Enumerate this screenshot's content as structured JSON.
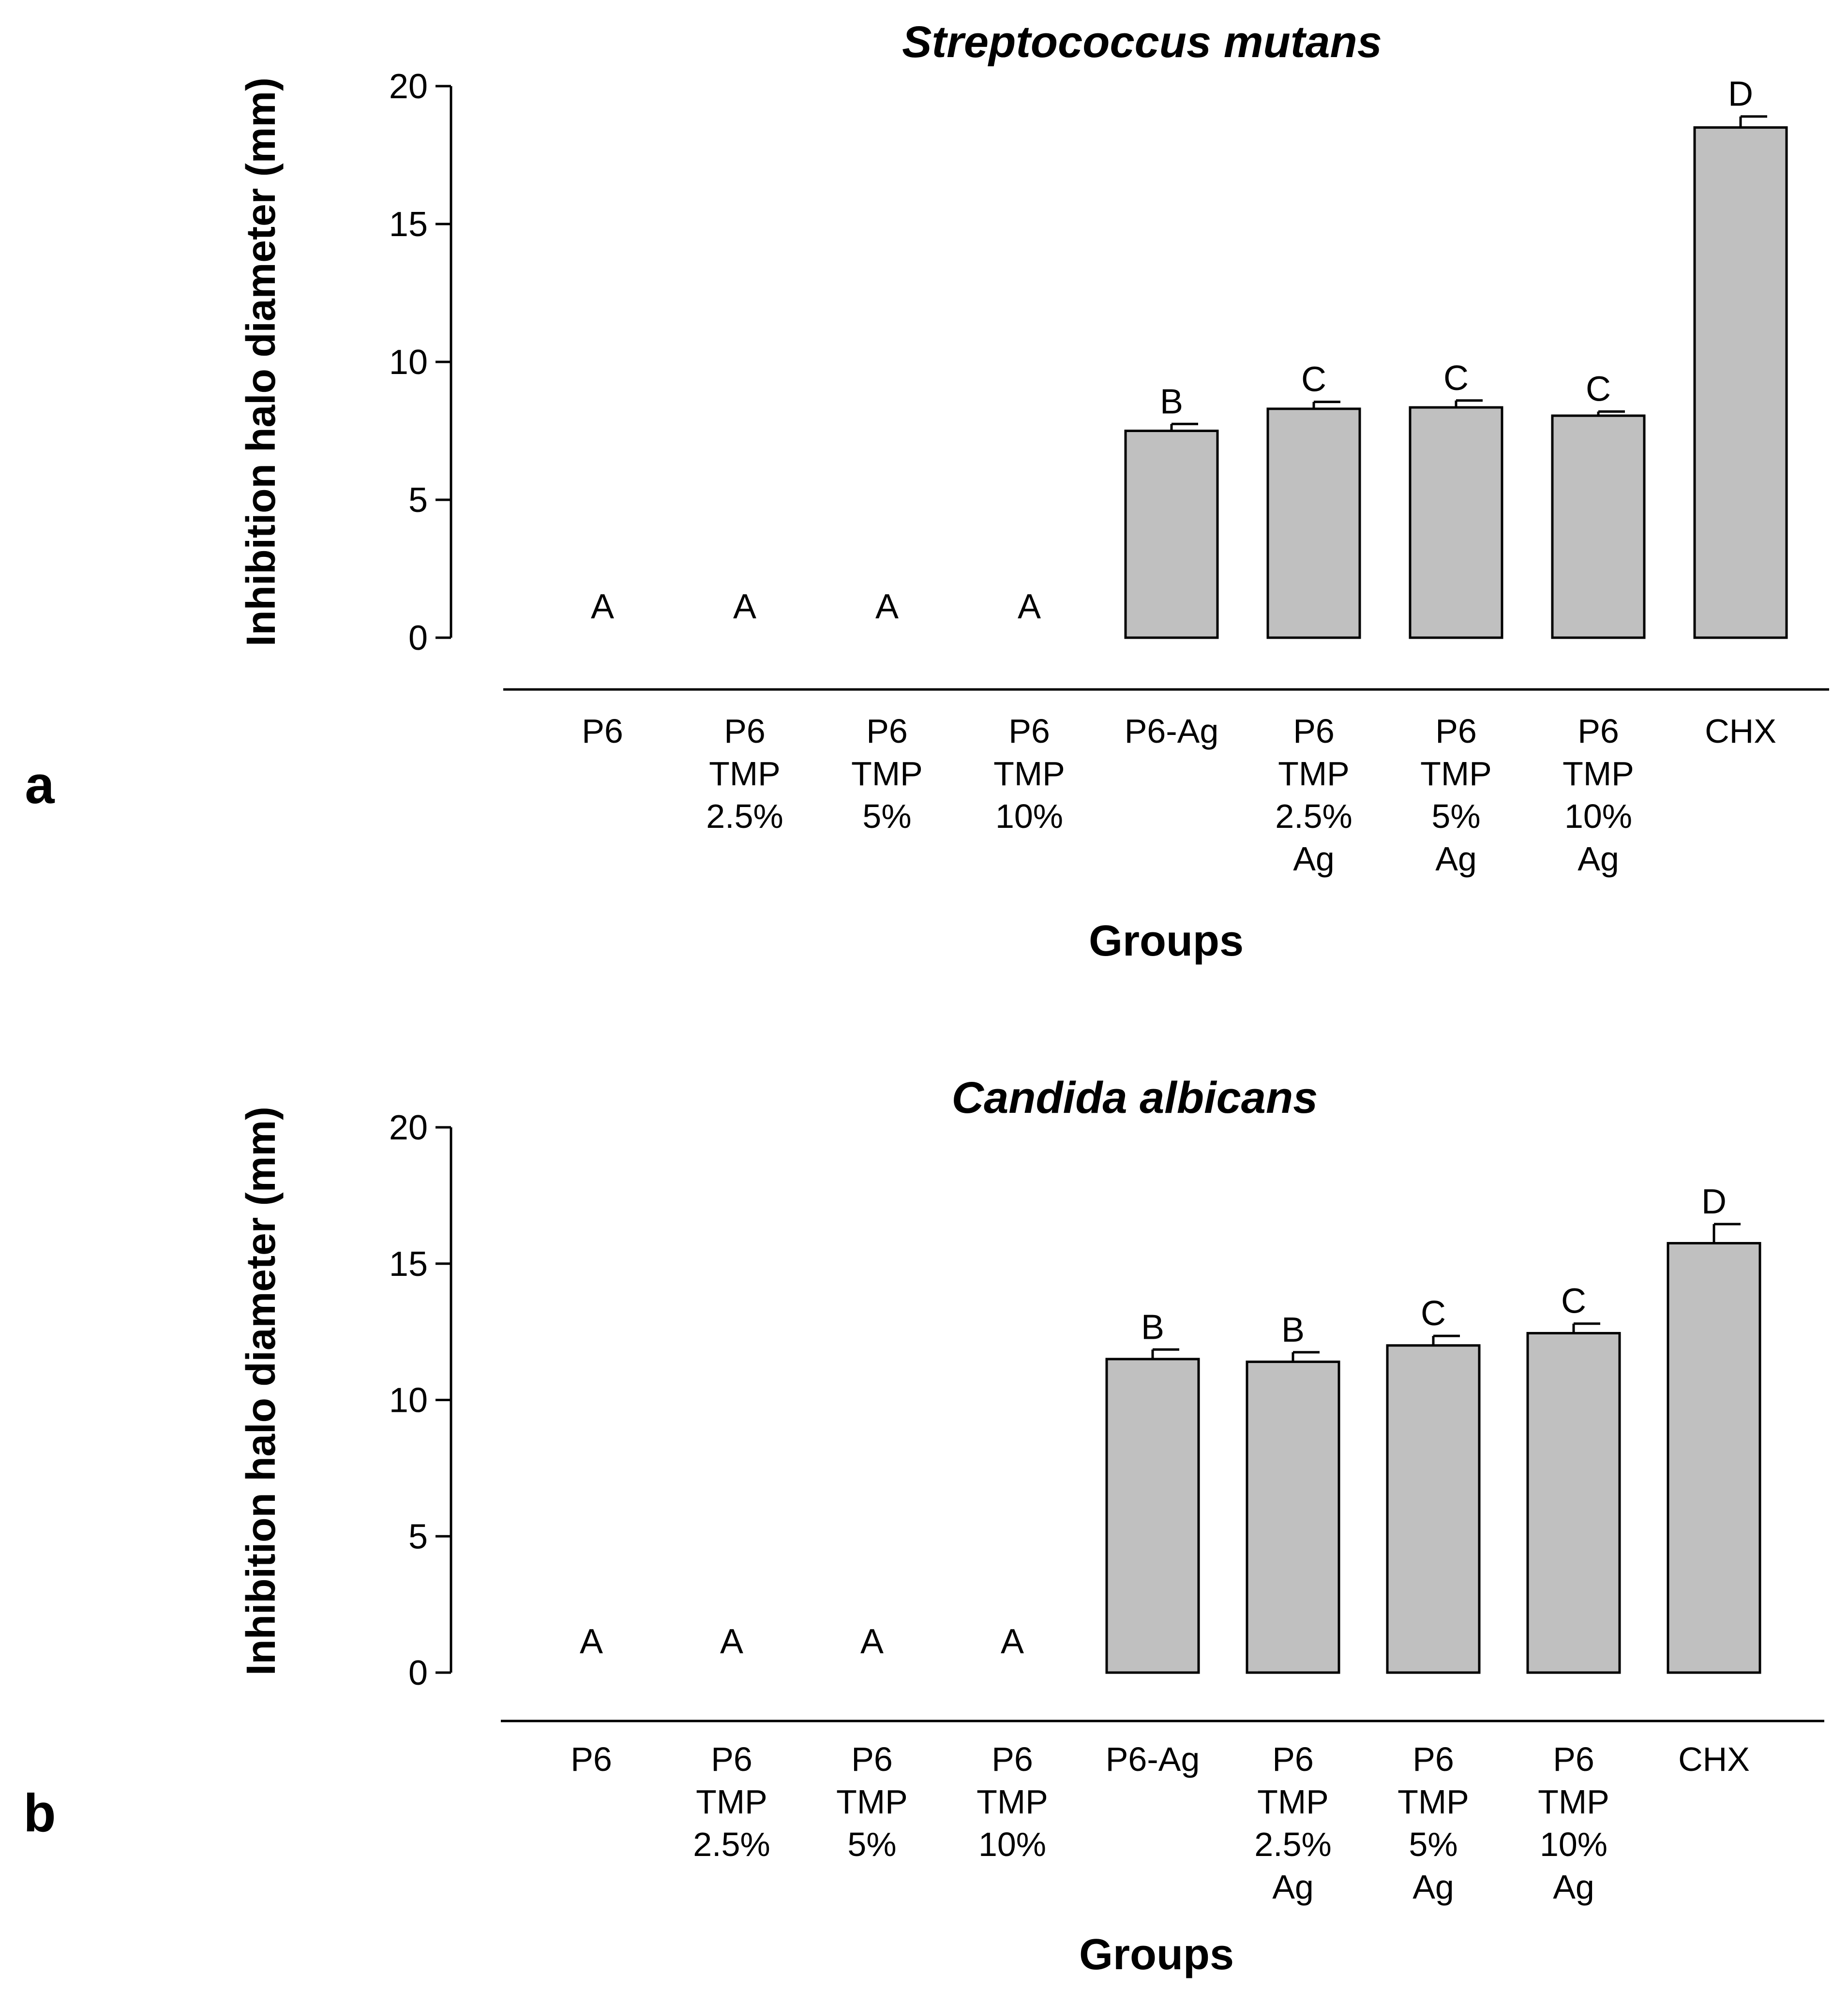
{
  "chart_data": [
    {
      "type": "bar",
      "panel": "a",
      "title": "Streptococcus mutans",
      "xlabel": "Groups",
      "ylabel": "Inhibition halo diameter (mm)",
      "ylim": [
        0,
        20
      ],
      "yticks": [
        0,
        5,
        10,
        15,
        20
      ],
      "categories": [
        [
          "P6"
        ],
        [
          "P6",
          "TMP",
          "2.5%"
        ],
        [
          "P6",
          "TMP",
          "5%"
        ],
        [
          "P6",
          "TMP",
          "10%"
        ],
        [
          "P6-Ag"
        ],
        [
          "P6",
          "TMP",
          "2.5%",
          "Ag"
        ],
        [
          "P6",
          "TMP",
          "5%",
          "Ag"
        ],
        [
          "P6",
          "TMP",
          "10%",
          "Ag"
        ],
        [
          "CHX"
        ]
      ],
      "values": [
        0,
        0,
        0,
        0,
        7.5,
        8.3,
        8.35,
        8.05,
        18.5
      ],
      "errors": [
        0,
        0,
        0,
        0,
        0.25,
        0.25,
        0.25,
        0.15,
        0.4
      ],
      "significance": [
        "A",
        "A",
        "A",
        "A",
        "B",
        "C",
        "C",
        "C",
        "D"
      ]
    },
    {
      "type": "bar",
      "panel": "b",
      "title": "Candida albicans",
      "xlabel": "Groups",
      "ylabel": "Inhibition halo diameter (mm)",
      "ylim": [
        0,
        20
      ],
      "yticks": [
        0,
        5,
        10,
        15,
        20
      ],
      "categories": [
        [
          "P6"
        ],
        [
          "P6",
          "TMP",
          "2.5%"
        ],
        [
          "P6",
          "TMP",
          "5%"
        ],
        [
          "P6",
          "TMP",
          "10%"
        ],
        [
          "P6-Ag"
        ],
        [
          "P6",
          "TMP",
          "2.5%",
          "Ag"
        ],
        [
          "P6",
          "TMP",
          "5%",
          "Ag"
        ],
        [
          "P6",
          "TMP",
          "10%",
          "Ag"
        ],
        [
          "CHX"
        ]
      ],
      "values": [
        0,
        0,
        0,
        0,
        11.5,
        11.4,
        12.0,
        12.45,
        15.75
      ],
      "errors": [
        0,
        0,
        0,
        0,
        0.35,
        0.35,
        0.35,
        0.35,
        0.7
      ],
      "significance": [
        "A",
        "A",
        "A",
        "A",
        "B",
        "B",
        "C",
        "C",
        "D"
      ]
    }
  ]
}
